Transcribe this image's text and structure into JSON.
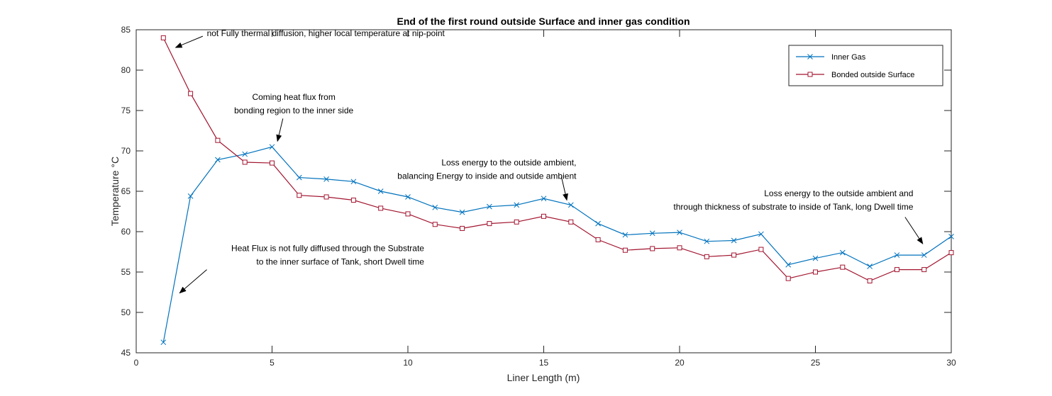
{
  "chart_data": {
    "type": "line",
    "title": "End of the first round outside Surface and inner gas condition",
    "xlabel": "Liner Length (m)",
    "ylabel": "Temperature",
    "ylabel_unit": "°C",
    "xlim": [
      0,
      30
    ],
    "ylim": [
      45,
      85
    ],
    "xticks": [
      0,
      5,
      10,
      15,
      20,
      25,
      30
    ],
    "yticks": [
      45,
      50,
      55,
      60,
      65,
      70,
      75,
      80,
      85
    ],
    "grid": false,
    "legend_position": "top-right",
    "series": [
      {
        "name": "Inner Gas",
        "color": "#0072BD",
        "marker": "x",
        "x": [
          1,
          2,
          3,
          4,
          5,
          6,
          7,
          8,
          9,
          10,
          11,
          12,
          13,
          14,
          15,
          16,
          17,
          18,
          19,
          20,
          21,
          22,
          23,
          24,
          25,
          26,
          27,
          28,
          29,
          30
        ],
        "y": [
          46.3,
          64.4,
          68.9,
          69.6,
          70.5,
          66.7,
          66.5,
          66.2,
          65.0,
          64.3,
          63.0,
          62.4,
          63.1,
          63.3,
          64.1,
          63.3,
          61.0,
          59.6,
          59.8,
          59.9,
          58.8,
          58.9,
          59.7,
          55.9,
          56.7,
          57.4,
          55.7,
          57.1,
          57.1,
          59.4
        ]
      },
      {
        "name": "Bonded outside Surface",
        "color": "#A2142F",
        "marker": "square",
        "x": [
          1,
          2,
          3,
          4,
          5,
          6,
          7,
          8,
          9,
          10,
          11,
          12,
          13,
          14,
          15,
          16,
          17,
          18,
          19,
          20,
          21,
          22,
          23,
          24,
          25,
          26,
          27,
          28,
          29,
          30
        ],
        "y": [
          84.0,
          77.1,
          71.3,
          68.6,
          68.5,
          64.5,
          64.3,
          63.9,
          62.9,
          62.2,
          60.9,
          60.4,
          61.0,
          61.2,
          61.9,
          61.2,
          59.0,
          57.7,
          57.9,
          58.0,
          56.9,
          57.1,
          57.8,
          54.2,
          55.0,
          55.6,
          53.9,
          55.3,
          55.3,
          57.4
        ]
      }
    ],
    "annotations": [
      {
        "lines": [
          "not Fully thermal diffusion, higher local temperature at nip-point"
        ],
        "anchor": "start",
        "text_at": [
          2.6,
          84.2
        ],
        "arrow_from": [
          2.45,
          84.2
        ],
        "arrow_to": [
          1.45,
          82.8
        ]
      },
      {
        "lines": [
          "Coming heat flux from",
          "bonding region to the inner side"
        ],
        "anchor": "middle",
        "text_at": [
          5.8,
          76.3
        ],
        "arrow_from": [
          5.4,
          74.0
        ],
        "arrow_to": [
          5.2,
          71.2
        ]
      },
      {
        "lines": [
          "Loss energy to the outside ambient,",
          "balancing Energy to inside and outside ambient"
        ],
        "anchor": "end",
        "text_at": [
          16.2,
          68.2
        ],
        "arrow_from": [
          15.65,
          66.8
        ],
        "arrow_to": [
          15.85,
          63.9
        ]
      },
      {
        "lines": [
          "Loss energy to the outside ambient and",
          "through thickness of substrate to inside of Tank, long Dwell time"
        ],
        "anchor": "end",
        "text_at": [
          28.6,
          64.4
        ],
        "arrow_from": [
          28.3,
          61.8
        ],
        "arrow_to": [
          28.95,
          58.5
        ]
      },
      {
        "lines": [
          "Heat Flux is not fully diffused through the Substrate",
          "to the inner surface of Tank, short Dwell time"
        ],
        "anchor": "end",
        "text_at": [
          10.6,
          57.6
        ],
        "arrow_from": [
          2.6,
          55.3
        ],
        "arrow_to": [
          1.6,
          52.4
        ]
      }
    ]
  }
}
